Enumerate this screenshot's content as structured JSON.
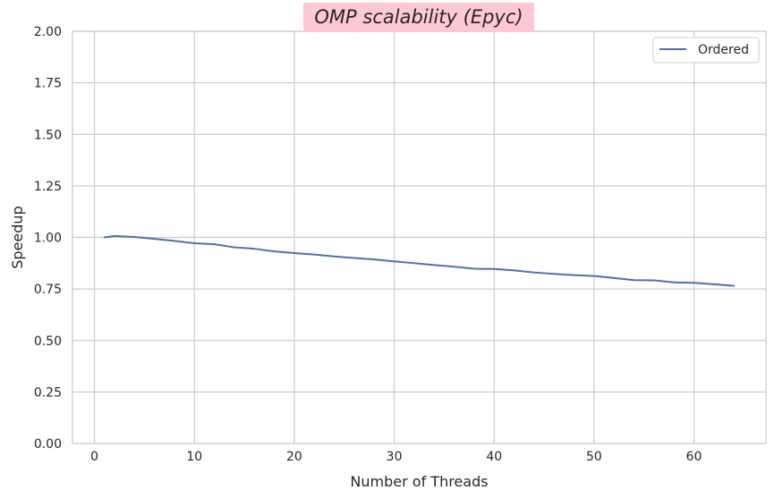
{
  "chart_data": {
    "type": "line",
    "title": "OMP scalability (Epyc)",
    "title_background": "#ffc8d6",
    "xlabel": "Number of Threads",
    "ylabel": "Speedup",
    "xlim": [
      -2.2,
      67.2
    ],
    "ylim": [
      0,
      2
    ],
    "xticks": [
      0,
      10,
      20,
      30,
      40,
      50,
      60
    ],
    "yticks": [
      0.0,
      0.25,
      0.5,
      0.75,
      1.0,
      1.25,
      1.5,
      1.75,
      2.0
    ],
    "ytick_labels": [
      "0.00",
      "0.25",
      "0.50",
      "0.75",
      "1.00",
      "1.25",
      "1.50",
      "1.75",
      "2.00"
    ],
    "grid": true,
    "legend_position": "top-right",
    "series": [
      {
        "name": "Ordered",
        "color": "#4c72b0",
        "x": [
          1,
          2,
          4,
          6,
          8,
          10,
          12,
          14,
          16,
          18,
          20,
          22,
          24,
          26,
          28,
          30,
          32,
          34,
          36,
          38,
          40,
          42,
          44,
          46,
          48,
          50,
          52,
          54,
          56,
          58,
          60,
          62,
          64
        ],
        "y": [
          1.0,
          1.007,
          1.002,
          0.993,
          0.983,
          0.972,
          0.967,
          0.952,
          0.945,
          0.932,
          0.924,
          0.917,
          0.908,
          0.9,
          0.893,
          0.884,
          0.875,
          0.866,
          0.858,
          0.848,
          0.847,
          0.84,
          0.83,
          0.823,
          0.817,
          0.813,
          0.803,
          0.793,
          0.792,
          0.782,
          0.78,
          0.773,
          0.765
        ]
      }
    ]
  }
}
